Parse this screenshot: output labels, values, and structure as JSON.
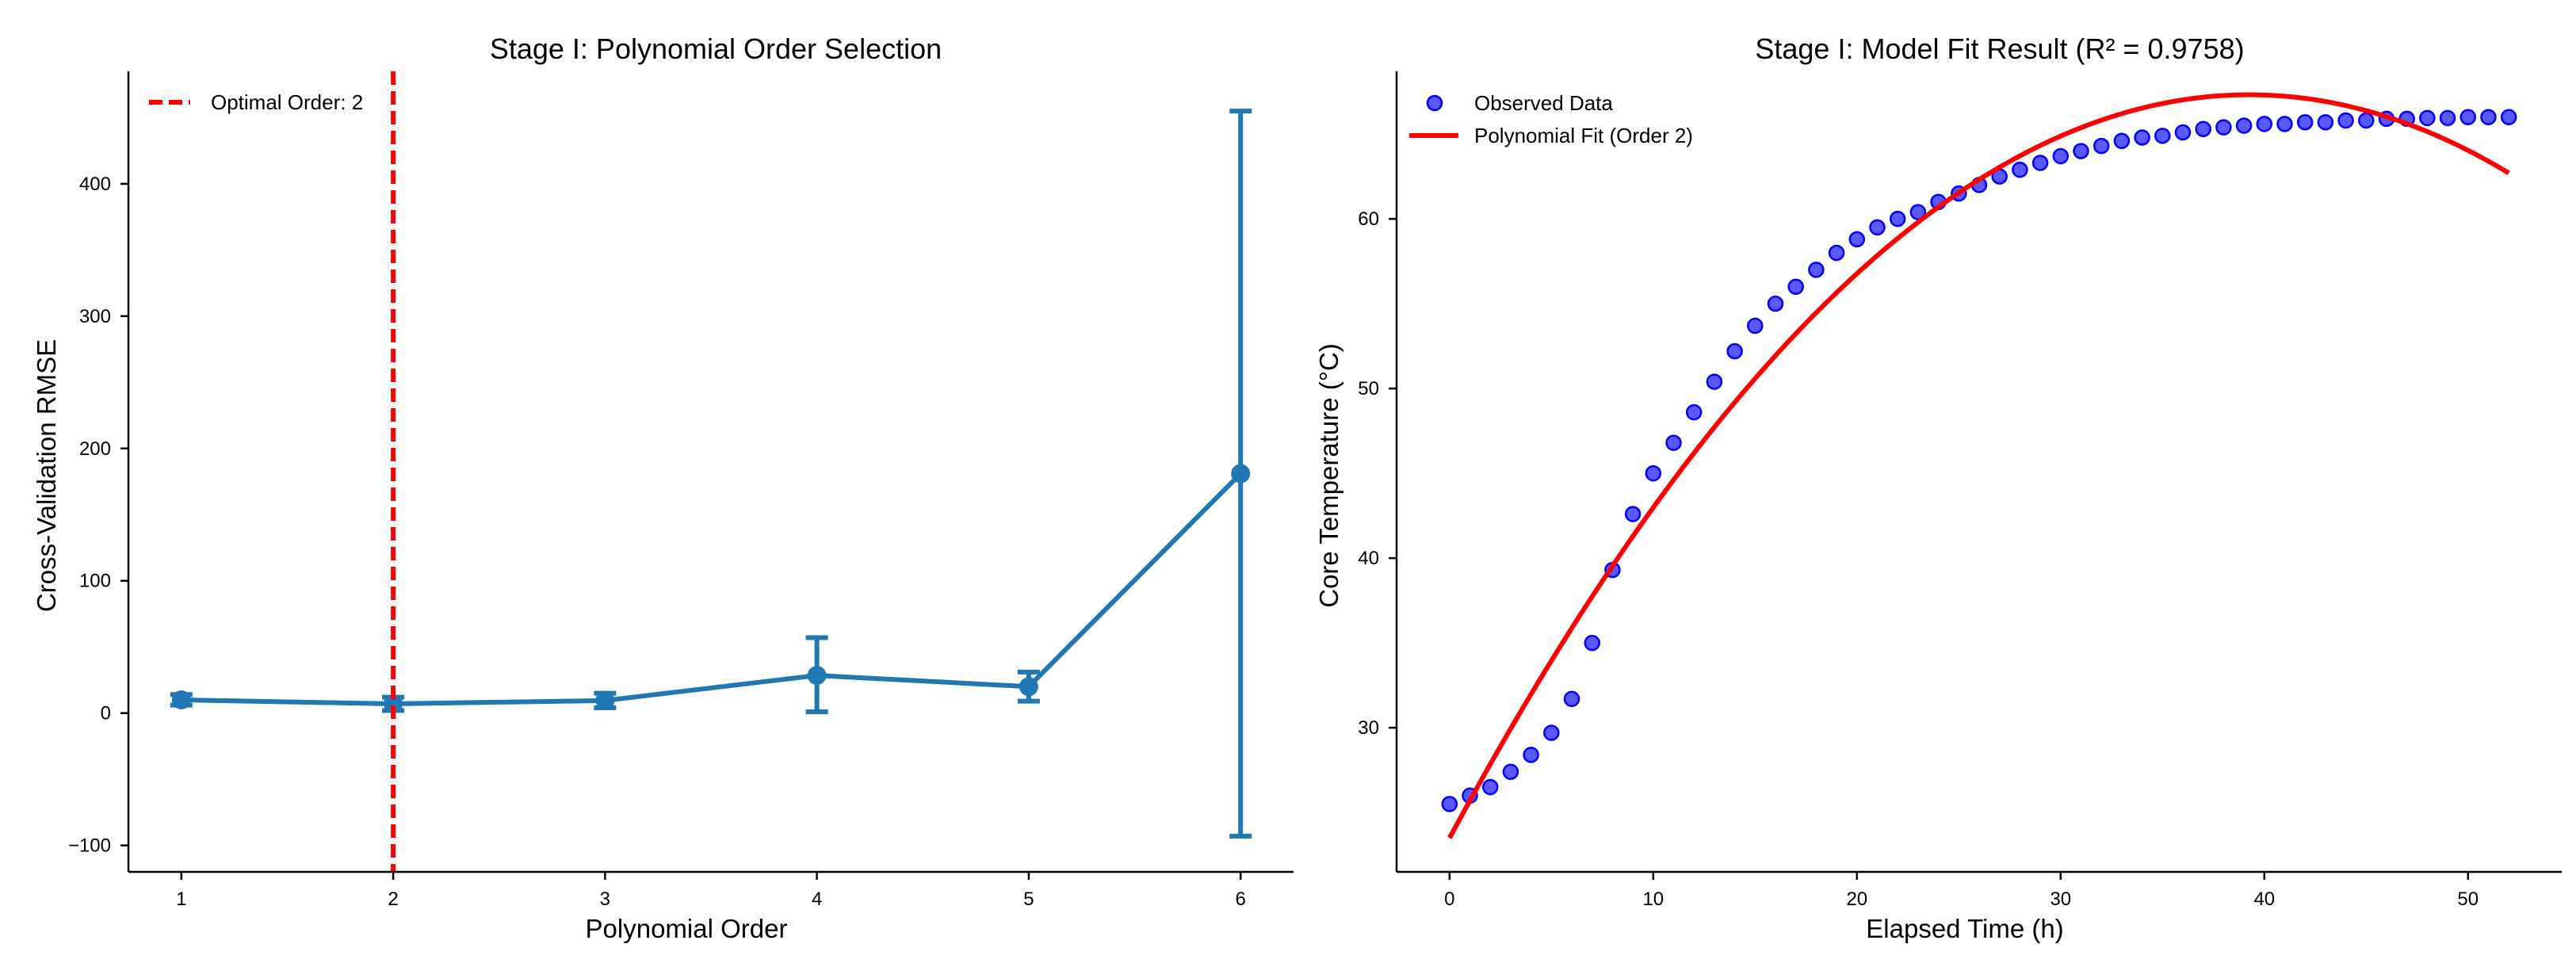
{
  "chart_data": [
    {
      "type": "line",
      "title": "Stage I: Polynomial Order Selection",
      "xlabel": "Polynomial Order",
      "ylabel": "Cross-Validation RMSE",
      "x": [
        1,
        2,
        3,
        4,
        5,
        6
      ],
      "xticks": [
        "1",
        "2",
        "3",
        "4",
        "5",
        "6"
      ],
      "yticks": [
        "−100",
        "0",
        "100",
        "200",
        "300",
        "400"
      ],
      "ytick_values": [
        -100,
        0,
        100,
        200,
        300,
        400
      ],
      "xlim": [
        0.75,
        6.25
      ],
      "ylim": [
        -120,
        485
      ],
      "series": [
        {
          "name": "Cross-Validation RMSE",
          "values": [
            10,
            7,
            9.5,
            28.5,
            20,
            181
          ],
          "err_low": [
            6,
            2,
            4,
            1,
            9,
            -93
          ],
          "err_high": [
            14,
            12,
            15,
            57,
            31,
            455
          ],
          "color": "#1f77b4"
        }
      ],
      "annotation": {
        "type": "vline",
        "x": 2,
        "label": "Optimal Order: 2",
        "color": "#ff0000",
        "style": "dashed"
      },
      "legend_position": "top-left",
      "grid": false
    },
    {
      "type": "scatter",
      "title": "Stage I: Model Fit Result (R² = 0.9758)",
      "xlabel": "Elapsed Time (h)",
      "ylabel": "Core Temperature (°C)",
      "xticks": [
        "0",
        "10",
        "20",
        "30",
        "40",
        "50"
      ],
      "xtick_values": [
        0,
        10,
        20,
        30,
        40,
        50
      ],
      "yticks": [
        "30",
        "40",
        "50",
        "60"
      ],
      "ytick_values": [
        30,
        40,
        50,
        60
      ],
      "xlim": [
        -2.6,
        54.6
      ],
      "ylim": [
        21.5,
        68.7
      ],
      "series": [
        {
          "name": "Observed Data",
          "marker": "circle",
          "color": "#0000ff",
          "x": [
            0,
            1,
            2,
            3,
            4,
            5,
            6,
            7,
            8,
            9,
            10,
            11,
            12,
            13,
            14,
            15,
            16,
            17,
            18,
            19,
            20,
            21,
            22,
            23,
            24,
            25,
            26,
            27,
            28,
            29,
            30,
            31,
            32,
            33,
            34,
            35,
            36,
            37,
            38,
            39,
            40,
            41,
            42,
            43,
            44,
            45,
            46,
            47,
            48,
            49,
            50,
            51,
            52
          ],
          "y": [
            25.5,
            26,
            26.5,
            27.4,
            28.4,
            29.7,
            31.7,
            35,
            39.3,
            42.6,
            45,
            46.8,
            48.6,
            50.4,
            52.2,
            53.7,
            55,
            56,
            57,
            58,
            58.8,
            59.5,
            60,
            60.4,
            61,
            61.5,
            62,
            62.5,
            62.9,
            63.3,
            63.7,
            64,
            64.3,
            64.6,
            64.8,
            64.9,
            65.1,
            65.3,
            65.4,
            65.5,
            65.6,
            65.6,
            65.7,
            65.7,
            65.8,
            65.8,
            65.9,
            65.9,
            65.95,
            65.95,
            66,
            66,
            66
          ]
        },
        {
          "name": "Polynomial Fit (Order 2)",
          "line": "solid",
          "color": "#ff0000",
          "coefficients": [
            23.5,
            2.2323,
            -0.02843
          ],
          "x_range": [
            0,
            52
          ]
        }
      ],
      "legend_position": "top-left",
      "grid": false
    }
  ],
  "colors": {
    "line": "#1f77b4",
    "vline": "#ff0000",
    "scatter": "#0000ff",
    "fit": "#ff0000"
  }
}
